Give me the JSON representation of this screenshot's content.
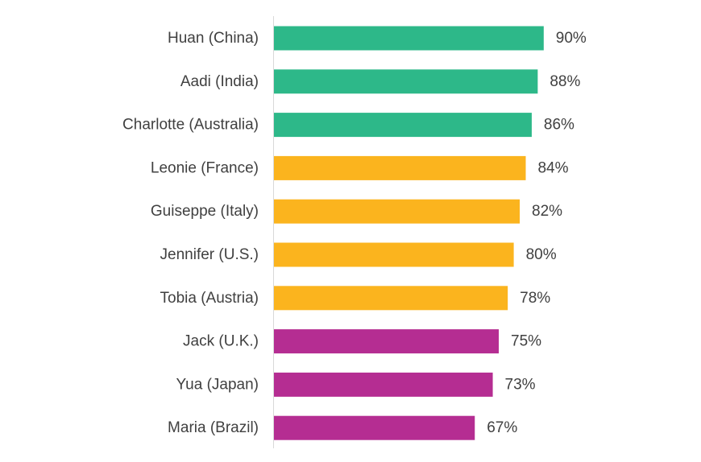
{
  "chart_data": {
    "type": "bar",
    "orientation": "horizontal",
    "title": "",
    "xlabel": "",
    "ylabel": "",
    "categories": [
      "Huan (China)",
      "Aadi (India)",
      "Charlotte (Australia)",
      "Leonie (France)",
      "Guiseppe (Italy)",
      "Jennifer (U.S.)",
      "Tobia (Austria)",
      "Jack (U.K.)",
      "Yua (Japan)",
      "Maria (Brazil)"
    ],
    "values": [
      90,
      88,
      86,
      84,
      82,
      80,
      78,
      75,
      73,
      67
    ],
    "value_labels": [
      "90%",
      "88%",
      "86%",
      "84%",
      "82%",
      "80%",
      "78%",
      "75%",
      "73%",
      "67%"
    ],
    "bar_colors": [
      "#2db889",
      "#2db889",
      "#2db889",
      "#fbb41e",
      "#fbb41e",
      "#fbb41e",
      "#fbb41e",
      "#b52d92",
      "#b52d92",
      "#b52d92"
    ],
    "xlim": [
      0,
      100
    ],
    "grid": false,
    "legend": "none"
  }
}
